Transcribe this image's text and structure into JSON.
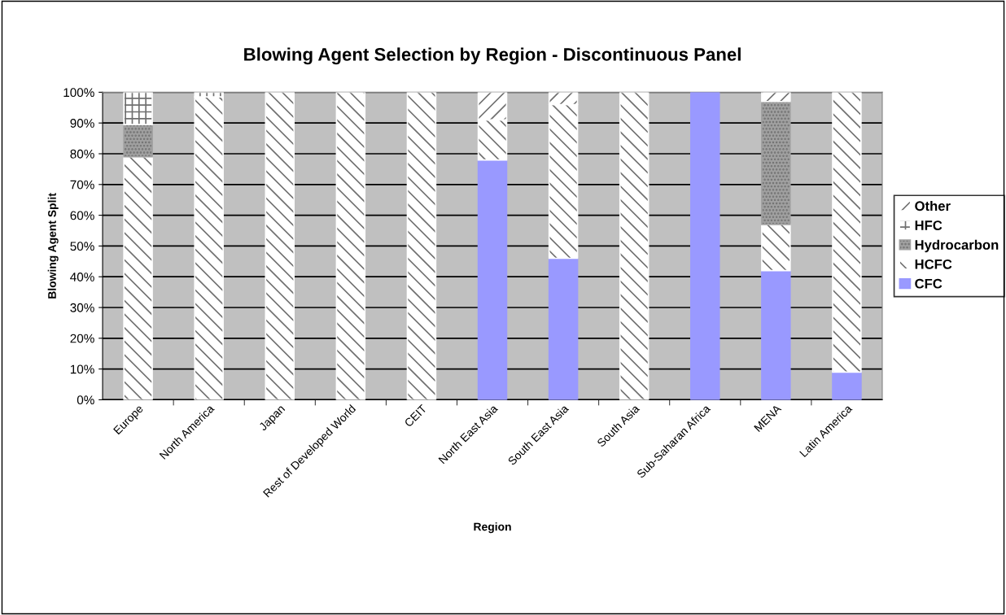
{
  "chart_data": {
    "type": "bar",
    "stacked": true,
    "title": "Blowing Agent Selection by Region - Discontinuous Panel",
    "xlabel": "Region",
    "ylabel": "Blowing Agent Split",
    "categories": [
      "Europe",
      "North America",
      "Japan",
      "Rest of Developed World",
      "CEIT",
      "North East Asia",
      "South East Asia",
      "South Asia",
      "Sub-Saharan Africa",
      "MENA",
      "Latin America"
    ],
    "series": [
      {
        "name": "CFC",
        "color": "#9999ff",
        "values": [
          0,
          0,
          0,
          0,
          0,
          78,
          46,
          0,
          100,
          42,
          9
        ]
      },
      {
        "name": "HCFC",
        "color": "#ffffff",
        "values": [
          79,
          98.5,
          100,
          100,
          100,
          13,
          50,
          100,
          0,
          15,
          91
        ]
      },
      {
        "name": "Hydrocarbon",
        "color": "#a0a0a0",
        "values": [
          10.5,
          0,
          0,
          0,
          0,
          0,
          0,
          0,
          0,
          40,
          0
        ]
      },
      {
        "name": "HFC",
        "color": "#ffffff",
        "values": [
          10.5,
          1.5,
          0,
          0,
          0,
          0,
          0,
          0,
          0,
          0,
          0
        ]
      },
      {
        "name": "Other",
        "color": "#ffffff",
        "values": [
          0,
          0,
          0,
          0,
          0,
          9,
          4,
          0,
          0,
          3,
          0
        ]
      }
    ],
    "ylim": [
      0,
      100
    ],
    "yticks": [
      {
        "value": 0,
        "label": "0%"
      },
      {
        "value": 10,
        "label": "10%"
      },
      {
        "value": 20,
        "label": "20%"
      },
      {
        "value": 30,
        "label": "30%"
      },
      {
        "value": 40,
        "label": "40%"
      },
      {
        "value": 50,
        "label": "50%"
      },
      {
        "value": 60,
        "label": "60%"
      },
      {
        "value": 70,
        "label": "70%"
      },
      {
        "value": 80,
        "label": "80%"
      },
      {
        "value": 90,
        "label": "90%"
      },
      {
        "value": 100,
        "label": "100%"
      }
    ],
    "grid": "y",
    "legend": "right"
  }
}
